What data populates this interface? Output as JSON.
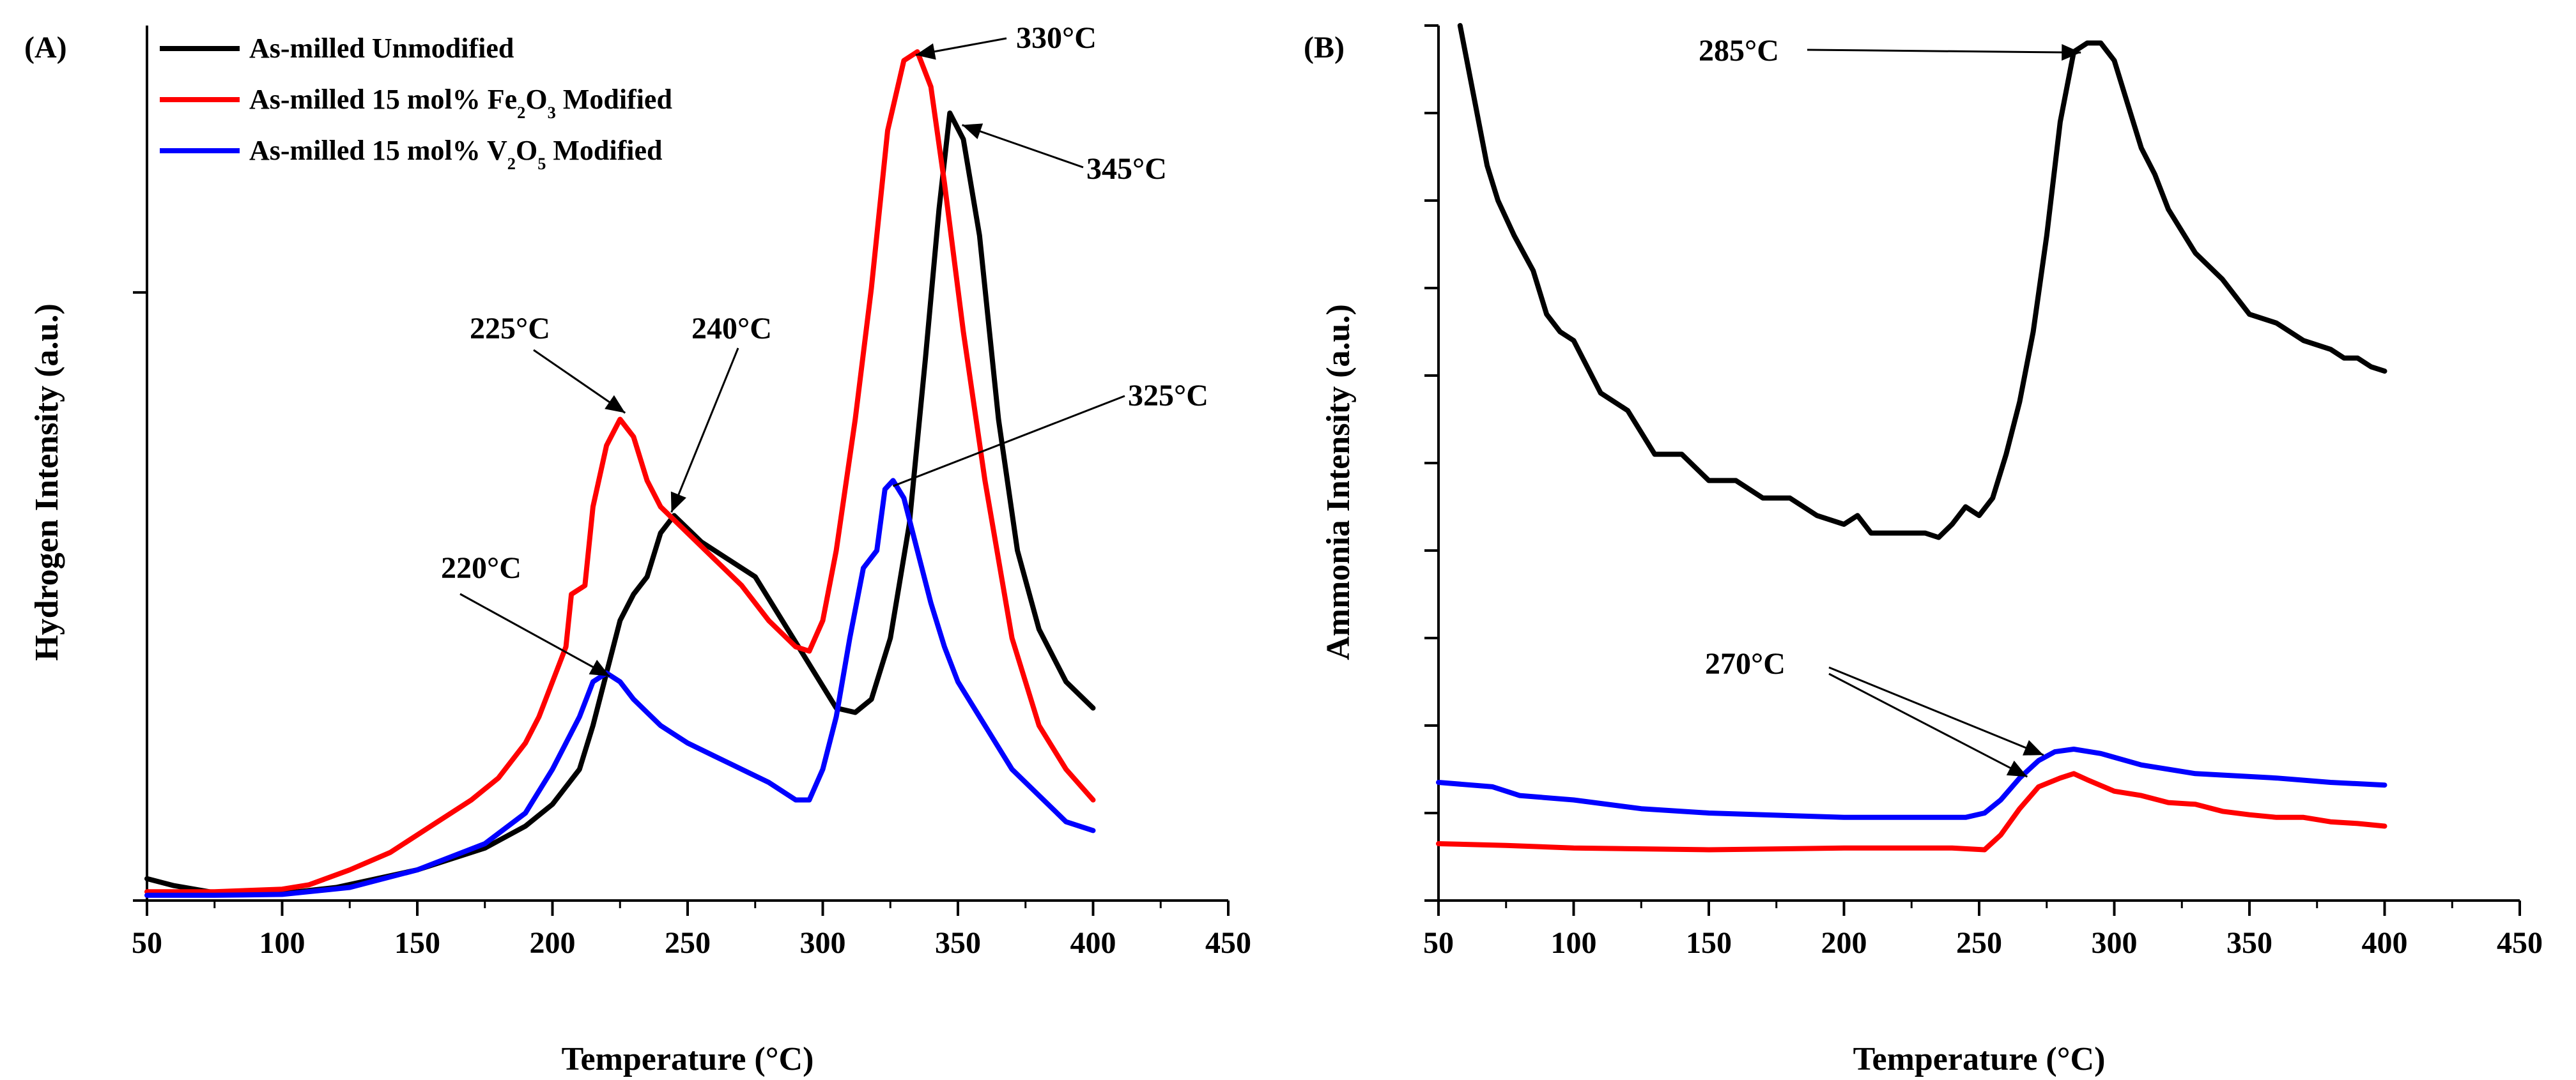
{
  "colors": {
    "unmodified": "#000000",
    "fe2o3": "#ff0000",
    "v2o5": "#0000ff"
  },
  "chart_data": [
    {
      "type": "line",
      "panel_label": "(A)",
      "xlabel": "Temperature (°C)",
      "ylabel": "Hydrogen Intensity (a.u.)",
      "xlim": [
        50,
        450
      ],
      "ylim": [
        0,
        100
      ],
      "xticks": [
        50,
        100,
        150,
        200,
        250,
        300,
        350,
        400,
        450
      ],
      "yticks": [
        0,
        69.5
      ],
      "legend": {
        "placement": "top-left",
        "entries": [
          {
            "prefix": "As-milled Unmodified",
            "formula": [],
            "suffix": ""
          },
          {
            "prefix": "As-milled 15 mol% ",
            "formula": [
              [
                "Fe",
                "2"
              ],
              [
                "O",
                "3"
              ]
            ],
            "suffix": " Modified"
          },
          {
            "prefix": "As-milled 15 mol% ",
            "formula": [
              [
                "V",
                "2"
              ],
              [
                "O",
                "5"
              ]
            ],
            "suffix": " Modified"
          }
        ]
      },
      "series": [
        {
          "name": "As-milled Unmodified",
          "color": "#000000",
          "points": [
            [
              50,
              2.5
            ],
            [
              60,
              1.7
            ],
            [
              75,
              0.9
            ],
            [
              100,
              0.8
            ],
            [
              120,
              1.5
            ],
            [
              150,
              3.5
            ],
            [
              175,
              6
            ],
            [
              190,
              8.5
            ],
            [
              200,
              11
            ],
            [
              210,
              15
            ],
            [
              215,
              20
            ],
            [
              220,
              26
            ],
            [
              225,
              32
            ],
            [
              230,
              35
            ],
            [
              235,
              37
            ],
            [
              240,
              42
            ],
            [
              245,
              44
            ],
            [
              255,
              41
            ],
            [
              265,
              39
            ],
            [
              275,
              37
            ],
            [
              285,
              32
            ],
            [
              295,
              27
            ],
            [
              305,
              22
            ],
            [
              312,
              21.5
            ],
            [
              318,
              23
            ],
            [
              325,
              30
            ],
            [
              332,
              43
            ],
            [
              338,
              62
            ],
            [
              343,
              79
            ],
            [
              347,
              90
            ],
            [
              352,
              87
            ],
            [
              358,
              76
            ],
            [
              365,
              55
            ],
            [
              372,
              40
            ],
            [
              380,
              31
            ],
            [
              390,
              25
            ],
            [
              400,
              22
            ]
          ]
        },
        {
          "name": "As-milled 15 mol% Fe2O3 Modified",
          "color": "#ff0000",
          "points": [
            [
              50,
              1
            ],
            [
              75,
              1
            ],
            [
              100,
              1.3
            ],
            [
              110,
              1.8
            ],
            [
              125,
              3.5
            ],
            [
              140,
              5.5
            ],
            [
              155,
              8.5
            ],
            [
              170,
              11.5
            ],
            [
              180,
              14
            ],
            [
              190,
              18
            ],
            [
              195,
              21
            ],
            [
              200,
              25
            ],
            [
              205,
              29
            ],
            [
              207,
              35
            ],
            [
              212,
              36
            ],
            [
              215,
              45
            ],
            [
              220,
              52
            ],
            [
              225,
              55
            ],
            [
              230,
              53
            ],
            [
              235,
              48
            ],
            [
              240,
              45
            ],
            [
              250,
              42
            ],
            [
              260,
              39
            ],
            [
              270,
              36
            ],
            [
              280,
              32
            ],
            [
              290,
              29
            ],
            [
              295,
              28.5
            ],
            [
              300,
              32
            ],
            [
              305,
              40
            ],
            [
              312,
              55
            ],
            [
              318,
              70
            ],
            [
              324,
              88
            ],
            [
              330,
              96
            ],
            [
              335,
              97
            ],
            [
              340,
              93
            ],
            [
              345,
              82
            ],
            [
              352,
              65
            ],
            [
              360,
              48
            ],
            [
              370,
              30
            ],
            [
              380,
              20
            ],
            [
              390,
              15
            ],
            [
              400,
              11.5
            ]
          ]
        },
        {
          "name": "As-milled 15 mol% V2O5 Modified",
          "color": "#0000ff",
          "points": [
            [
              50,
              0.6
            ],
            [
              75,
              0.6
            ],
            [
              100,
              0.7
            ],
            [
              125,
              1.5
            ],
            [
              150,
              3.5
            ],
            [
              175,
              6.5
            ],
            [
              190,
              10
            ],
            [
              200,
              15
            ],
            [
              210,
              21
            ],
            [
              215,
              25
            ],
            [
              220,
              26
            ],
            [
              225,
              25
            ],
            [
              230,
              23
            ],
            [
              240,
              20
            ],
            [
              250,
              18
            ],
            [
              260,
              16.5
            ],
            [
              270,
              15
            ],
            [
              280,
              13.5
            ],
            [
              290,
              11.5
            ],
            [
              295,
              11.5
            ],
            [
              300,
              15
            ],
            [
              305,
              21
            ],
            [
              310,
              30
            ],
            [
              315,
              38
            ],
            [
              320,
              40
            ],
            [
              323,
              47
            ],
            [
              326,
              48
            ],
            [
              330,
              46
            ],
            [
              335,
              40
            ],
            [
              340,
              34
            ],
            [
              345,
              29
            ],
            [
              350,
              25
            ],
            [
              360,
              20
            ],
            [
              370,
              15
            ],
            [
              380,
              12
            ],
            [
              390,
              9
            ],
            [
              400,
              8
            ]
          ]
        }
      ],
      "annotations": [
        {
          "text": "330°C",
          "target": [
            332,
            97
          ]
        },
        {
          "text": "345°C",
          "target": [
            348,
            89
          ]
        },
        {
          "text": "225°C",
          "target": [
            225,
            55
          ]
        },
        {
          "text": "240°C",
          "target": [
            244,
            44
          ]
        },
        {
          "text": "325°C",
          "target": [
            326,
            47
          ]
        },
        {
          "text": "220°C",
          "target": [
            220,
            26
          ]
        }
      ]
    },
    {
      "type": "line",
      "panel_label": "(B)",
      "xlabel": "Temperature (°C)",
      "ylabel": "Ammonia Intensity (a.u.)",
      "xlim": [
        50,
        450
      ],
      "ylim": [
        0,
        100
      ],
      "xticks": [
        50,
        100,
        150,
        200,
        250,
        300,
        350,
        400,
        450
      ],
      "yticks": [
        0,
        10,
        20,
        30,
        40,
        50,
        60,
        70,
        80,
        90,
        100
      ],
      "series": [
        {
          "name": "As-milled Unmodified",
          "color": "#000000",
          "points": [
            [
              58,
              100
            ],
            [
              63,
              92
            ],
            [
              68,
              84
            ],
            [
              72,
              80
            ],
            [
              78,
              76
            ],
            [
              85,
              72
            ],
            [
              90,
              67
            ],
            [
              95,
              65
            ],
            [
              100,
              64
            ],
            [
              110,
              58
            ],
            [
              120,
              56
            ],
            [
              130,
              51
            ],
            [
              140,
              51
            ],
            [
              150,
              48
            ],
            [
              160,
              48
            ],
            [
              170,
              46
            ],
            [
              180,
              46
            ],
            [
              190,
              44
            ],
            [
              200,
              43
            ],
            [
              205,
              44
            ],
            [
              210,
              42
            ],
            [
              220,
              42
            ],
            [
              230,
              42
            ],
            [
              235,
              41.5
            ],
            [
              240,
              43
            ],
            [
              245,
              45
            ],
            [
              250,
              44
            ],
            [
              255,
              46
            ],
            [
              260,
              51
            ],
            [
              265,
              57
            ],
            [
              270,
              65
            ],
            [
              275,
              76
            ],
            [
              280,
              89
            ],
            [
              285,
              97
            ],
            [
              290,
              98
            ],
            [
              295,
              98
            ],
            [
              300,
              96
            ],
            [
              305,
              91
            ],
            [
              310,
              86
            ],
            [
              315,
              83
            ],
            [
              320,
              79
            ],
            [
              330,
              74
            ],
            [
              340,
              71
            ],
            [
              350,
              67
            ],
            [
              360,
              66
            ],
            [
              370,
              64
            ],
            [
              380,
              63
            ],
            [
              385,
              62
            ],
            [
              390,
              62
            ],
            [
              395,
              61
            ],
            [
              400,
              60.5
            ]
          ]
        },
        {
          "name": "As-milled 15 mol% Fe2O3 Modified",
          "color": "#ff0000",
          "points": [
            [
              50,
              6.5
            ],
            [
              75,
              6.3
            ],
            [
              100,
              6
            ],
            [
              150,
              5.8
            ],
            [
              200,
              6
            ],
            [
              240,
              6
            ],
            [
              252,
              5.8
            ],
            [
              258,
              7.5
            ],
            [
              265,
              10.5
            ],
            [
              272,
              13
            ],
            [
              280,
              14
            ],
            [
              285,
              14.5
            ],
            [
              290,
              13.8
            ],
            [
              300,
              12.5
            ],
            [
              310,
              12
            ],
            [
              320,
              11.2
            ],
            [
              330,
              11
            ],
            [
              340,
              10.2
            ],
            [
              350,
              9.8
            ],
            [
              360,
              9.5
            ],
            [
              370,
              9.5
            ],
            [
              380,
              9
            ],
            [
              390,
              8.8
            ],
            [
              400,
              8.5
            ]
          ]
        },
        {
          "name": "As-milled 15 mol% V2O5 Modified",
          "color": "#0000ff",
          "points": [
            [
              50,
              13.5
            ],
            [
              70,
              13
            ],
            [
              80,
              12
            ],
            [
              100,
              11.5
            ],
            [
              125,
              10.5
            ],
            [
              150,
              10
            ],
            [
              200,
              9.5
            ],
            [
              245,
              9.5
            ],
            [
              252,
              10
            ],
            [
              258,
              11.5
            ],
            [
              265,
              14
            ],
            [
              272,
              16
            ],
            [
              278,
              17
            ],
            [
              285,
              17.3
            ],
            [
              295,
              16.8
            ],
            [
              310,
              15.5
            ],
            [
              330,
              14.5
            ],
            [
              360,
              14
            ],
            [
              380,
              13.5
            ],
            [
              400,
              13.2
            ]
          ]
        }
      ],
      "annotations": [
        {
          "text": "285°C",
          "target": [
            290,
            97.5
          ]
        },
        {
          "text": "270°C",
          "targets": [
            [
              275,
              17
            ],
            [
              269,
              14
            ]
          ]
        }
      ]
    }
  ]
}
